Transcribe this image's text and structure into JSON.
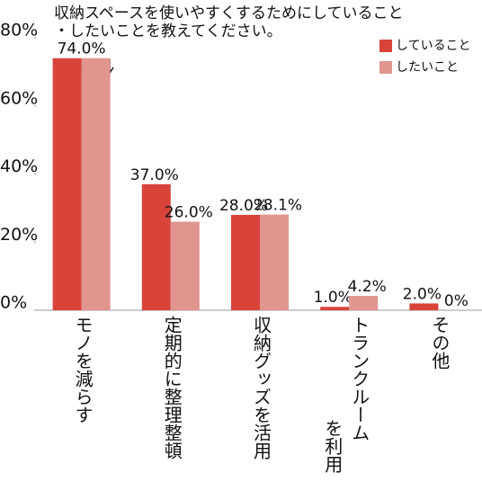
{
  "chart_data": {
    "type": "bar",
    "title": [
      "収納スペースを使いやすくするためにしていること",
      "・したいことを教えてください。"
    ],
    "categories": [
      "モノを減らす",
      "定期的に整理整頓",
      "収納グッズを活用",
      "トランクルーム\nを利用",
      "その他"
    ],
    "series": [
      {
        "name": "していること",
        "color": "#d9443a",
        "values": [
          74,
          37,
          28,
          1,
          2
        ],
        "value_labels": [
          "74.0%",
          "37.0%",
          "28.0%",
          "1.0%",
          "2.0%"
        ]
      },
      {
        "name": "したいこと",
        "color": "#e0958f",
        "values": [
          74,
          26,
          28.1,
          4.2,
          0
        ],
        "value_labels": [
          null,
          "26.0%",
          "28.1%",
          "4.2%",
          "0%"
        ]
      }
    ],
    "ylim": [
      0,
      80
    ],
    "yticks": [
      {
        "value": 0,
        "label": "0%"
      },
      {
        "value": 20,
        "label": "20%"
      },
      {
        "value": 40,
        "label": "40%"
      },
      {
        "value": 60,
        "label": "60%"
      },
      {
        "value": 80,
        "label": "80%"
      }
    ],
    "legend": "top-right"
  }
}
